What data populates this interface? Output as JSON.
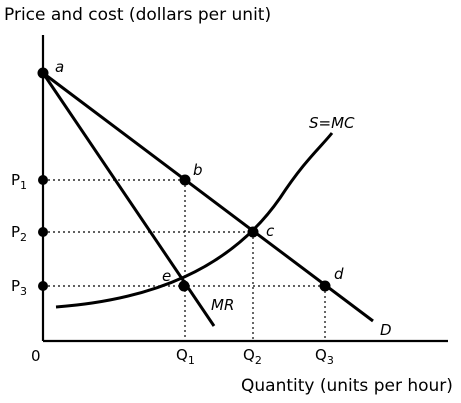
{
  "axes": {
    "y_title": "Price and cost (dollars per unit)",
    "x_title": "Quantity (units per hour)",
    "origin": "0"
  },
  "price_labels": [
    {
      "main": "P",
      "sub": "1"
    },
    {
      "main": "P",
      "sub": "2"
    },
    {
      "main": "P",
      "sub": "3"
    }
  ],
  "quantity_labels": [
    {
      "main": "Q",
      "sub": "1"
    },
    {
      "main": "Q",
      "sub": "2"
    },
    {
      "main": "Q",
      "sub": "3"
    }
  ],
  "points": [
    "a",
    "b",
    "c",
    "d",
    "e"
  ],
  "curves": {
    "supply": "S=MC",
    "demand": "D",
    "marginal_revenue": "MR"
  }
}
